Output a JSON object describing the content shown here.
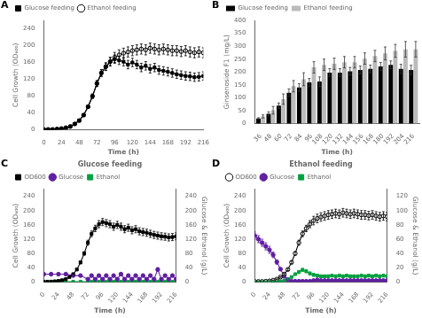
{
  "chart_data": [
    {
      "type": "line",
      "annotations": [
        "A"
      ],
      "xlabel": "Time (h)",
      "ylabel": "Cell Growth (OD₆₀₀)",
      "xlim": [
        0,
        216
      ],
      "ylim": [
        0,
        260
      ],
      "xticks": [
        0,
        24,
        48,
        72,
        96,
        120,
        144,
        168,
        192,
        216
      ],
      "yticks": [
        0,
        40,
        80,
        120,
        160,
        200,
        240
      ],
      "grid": false,
      "legend": "upper left",
      "series": [
        {
          "name": "Glucose feeding",
          "color": "#000000",
          "marker": "square",
          "line_style": "solid",
          "x": [
            0,
            6,
            12,
            18,
            24,
            30,
            36,
            42,
            48,
            54,
            60,
            66,
            72,
            78,
            84,
            90,
            96,
            102,
            108,
            114,
            120,
            126,
            132,
            138,
            144,
            150,
            156,
            162,
            168,
            174,
            180,
            186,
            192,
            198,
            204,
            210,
            216
          ],
          "values": [
            1,
            1,
            1,
            2,
            3,
            5,
            8,
            14,
            22,
            35,
            55,
            80,
            110,
            135,
            150,
            162,
            168,
            165,
            162,
            155,
            160,
            155,
            148,
            152,
            145,
            148,
            142,
            140,
            138,
            135,
            132,
            130,
            128,
            127,
            125,
            126,
            128
          ],
          "errors": [
            0.5,
            0.5,
            0.5,
            0.5,
            0.5,
            0.5,
            0.5,
            1,
            2,
            3,
            4,
            5,
            7,
            8,
            9,
            10,
            10,
            10,
            10,
            10,
            10,
            10,
            10,
            10,
            10,
            10,
            10,
            10,
            10,
            10,
            10,
            10,
            10,
            10,
            10,
            10,
            10
          ]
        },
        {
          "name": "Ethanol feeding",
          "color": "#000000",
          "marker": "open_circle",
          "line_style": "solid",
          "x": [
            0,
            6,
            12,
            18,
            24,
            30,
            36,
            42,
            48,
            54,
            60,
            66,
            72,
            78,
            84,
            90,
            96,
            102,
            108,
            114,
            120,
            126,
            132,
            138,
            144,
            150,
            156,
            162,
            168,
            174,
            180,
            186,
            192,
            198,
            204,
            210,
            216
          ],
          "values": [
            1,
            1,
            1,
            2,
            3,
            5,
            8,
            14,
            22,
            35,
            55,
            80,
            110,
            135,
            150,
            162,
            172,
            178,
            182,
            185,
            188,
            190,
            192,
            190,
            194,
            192,
            190,
            192,
            190,
            188,
            188,
            186,
            188,
            185,
            183,
            185,
            183
          ],
          "errors": [
            0.5,
            0.5,
            0.5,
            0.5,
            0.5,
            0.5,
            0.5,
            1,
            2,
            3,
            4,
            5,
            7,
            8,
            9,
            10,
            12,
            12,
            12,
            12,
            12,
            12,
            12,
            12,
            12,
            12,
            12,
            12,
            12,
            12,
            12,
            12,
            12,
            12,
            12,
            12,
            12
          ]
        }
      ]
    },
    {
      "type": "bar",
      "annotations": [
        "B"
      ],
      "xlabel": "Time (h)",
      "ylabel": "Ginsenoside F1 (mg/L)",
      "x": [
        36,
        48,
        60,
        72,
        84,
        96,
        108,
        120,
        132,
        144,
        156,
        168,
        180,
        192,
        204,
        216
      ],
      "xlim": [
        29,
        223
      ],
      "ylim": [
        0,
        400
      ],
      "xticks": [
        36,
        48,
        60,
        72,
        84,
        96,
        108,
        120,
        132,
        144,
        156,
        168,
        180,
        192,
        204,
        216
      ],
      "yticks": [
        0,
        50,
        100,
        150,
        200,
        250,
        300,
        350,
        400
      ],
      "grid": false,
      "legend": "upper left",
      "series": [
        {
          "name": "Glucose feeding",
          "color": "#000000",
          "values": [
            20,
            38,
            70,
            120,
            140,
            160,
            163,
            198,
            198,
            203,
            208,
            212,
            222,
            228,
            212,
            208
          ],
          "errors": [
            3,
            8,
            10,
            15,
            15,
            15,
            18,
            15,
            15,
            15,
            15,
            15,
            15,
            15,
            18,
            18
          ]
        },
        {
          "name": "Ethanol feeding",
          "color": "#BBBBBB",
          "values": [
            28,
            52,
            95,
            145,
            172,
            218,
            228,
            232,
            238,
            238,
            252,
            262,
            272,
            282,
            288,
            288
          ],
          "errors": [
            6,
            15,
            20,
            22,
            25,
            22,
            22,
            22,
            22,
            22,
            22,
            22,
            25,
            25,
            30,
            30
          ]
        }
      ]
    },
    {
      "type": "line",
      "title": "Glucose feeding",
      "annotations": [
        "C"
      ],
      "xlabel": "Time (h)",
      "ylabel": "Cell Growth (OD₆₀₀)",
      "y2label": "Glucose & Ethanol (g/L)",
      "xlim": [
        0,
        216
      ],
      "ylim": [
        0,
        260
      ],
      "y2lim": [
        0,
        260
      ],
      "xticks": [
        0,
        24,
        48,
        72,
        96,
        120,
        144,
        168,
        192,
        216
      ],
      "yticks": [
        0,
        40,
        80,
        120,
        160,
        200,
        240
      ],
      "y2ticks": [
        0,
        40,
        80,
        120,
        160,
        200,
        240
      ],
      "grid": false,
      "legend": "upper left",
      "series": [
        {
          "name": "OD600",
          "color": "#000000",
          "marker": "square",
          "line_style": "solid",
          "x": [
            0,
            6,
            12,
            18,
            24,
            30,
            36,
            42,
            48,
            54,
            60,
            66,
            72,
            78,
            84,
            90,
            96,
            102,
            108,
            114,
            120,
            126,
            132,
            138,
            144,
            150,
            156,
            162,
            168,
            174,
            180,
            186,
            192,
            198,
            204,
            210,
            216
          ],
          "values": [
            1,
            1,
            1,
            2,
            3,
            5,
            8,
            14,
            22,
            35,
            55,
            80,
            110,
            135,
            150,
            162,
            168,
            165,
            162,
            155,
            160,
            155,
            148,
            152,
            145,
            148,
            142,
            140,
            138,
            135,
            132,
            130,
            128,
            127,
            125,
            126,
            128
          ],
          "errors": [
            0.5,
            0.5,
            0.5,
            0.5,
            0.5,
            0.5,
            0.5,
            1,
            2,
            3,
            4,
            5,
            7,
            8,
            9,
            10,
            10,
            10,
            10,
            10,
            10,
            10,
            10,
            10,
            10,
            10,
            10,
            10,
            10,
            10,
            10,
            10,
            10,
            10,
            10,
            10,
            10
          ]
        },
        {
          "name": "Glucose",
          "color": "#6020A0",
          "marker": "circle",
          "line_style": "solid",
          "axis": "y2",
          "x": [
            0,
            12,
            24,
            36,
            48,
            60,
            72,
            78,
            84,
            90,
            96,
            102,
            108,
            114,
            120,
            126,
            132,
            138,
            144,
            150,
            156,
            162,
            168,
            174,
            180,
            186,
            192,
            198,
            204,
            210,
            216
          ],
          "values": [
            22,
            22,
            22,
            22,
            18,
            18,
            8,
            18,
            8,
            18,
            8,
            18,
            8,
            18,
            8,
            22,
            8,
            18,
            8,
            18,
            8,
            18,
            8,
            18,
            8,
            35,
            8,
            18,
            8,
            18,
            8
          ],
          "errors": [
            2,
            2,
            2,
            2,
            2,
            2,
            2,
            3,
            2,
            3,
            2,
            3,
            2,
            3,
            2,
            3,
            2,
            3,
            2,
            3,
            2,
            3,
            2,
            3,
            2,
            5,
            2,
            3,
            2,
            3,
            2
          ]
        },
        {
          "name": "Ethanol",
          "color": "#00A040",
          "marker": "square",
          "line_style": "solid",
          "axis": "y2",
          "x": [
            0,
            12,
            24,
            36,
            48,
            60,
            72,
            78,
            84,
            90,
            96,
            102,
            108,
            114,
            120,
            126,
            132,
            138,
            144,
            150,
            156,
            162,
            168,
            174,
            180,
            186,
            192,
            198,
            204,
            210,
            216
          ],
          "values": [
            1,
            1,
            1,
            1,
            1,
            1,
            1,
            1,
            1,
            1,
            1,
            1,
            1,
            1,
            1,
            1,
            1,
            1,
            1,
            1,
            1,
            1,
            1,
            1,
            1,
            1,
            1,
            1,
            1,
            1,
            1
          ]
        }
      ]
    },
    {
      "type": "line",
      "title": "Ethanol feeding",
      "annotations": [
        "D"
      ],
      "xlabel": "Time (h)",
      "ylabel": "Cell Growth (OD₆₀₀)",
      "y2label": "Glucose & Ethanol (g/L)",
      "xlim": [
        0,
        216
      ],
      "ylim": [
        0,
        260
      ],
      "y2lim": [
        0,
        130
      ],
      "xticks": [
        0,
        24,
        48,
        72,
        96,
        120,
        144,
        168,
        192,
        216
      ],
      "yticks": [
        0,
        40,
        80,
        120,
        160,
        200,
        240
      ],
      "y2ticks": [
        0,
        20,
        40,
        60,
        80,
        100,
        120
      ],
      "grid": false,
      "legend": "upper left",
      "series": [
        {
          "name": "OD600",
          "color": "#000000",
          "marker": "open_circle",
          "line_style": "solid",
          "x": [
            0,
            6,
            12,
            18,
            24,
            30,
            36,
            42,
            48,
            54,
            60,
            66,
            72,
            78,
            84,
            90,
            96,
            102,
            108,
            114,
            120,
            126,
            132,
            138,
            144,
            150,
            156,
            162,
            168,
            174,
            180,
            186,
            192,
            198,
            204,
            210,
            216
          ],
          "values": [
            1,
            1,
            1,
            2,
            3,
            5,
            8,
            14,
            22,
            35,
            55,
            80,
            110,
            135,
            150,
            162,
            172,
            178,
            182,
            185,
            188,
            190,
            192,
            190,
            194,
            192,
            190,
            192,
            190,
            188,
            188,
            186,
            188,
            185,
            183,
            185,
            183
          ],
          "errors": [
            0.5,
            0.5,
            0.5,
            0.5,
            0.5,
            0.5,
            0.5,
            1,
            2,
            3,
            4,
            5,
            7,
            8,
            9,
            10,
            12,
            12,
            12,
            12,
            12,
            12,
            12,
            12,
            12,
            12,
            12,
            12,
            12,
            12,
            12,
            12,
            12,
            12,
            12,
            12,
            12
          ]
        },
        {
          "name": "Glucose",
          "color": "#6020A0",
          "marker": "circle",
          "line_style": "solid",
          "axis": "y2",
          "x": [
            0,
            6,
            12,
            18,
            24,
            30,
            36,
            42,
            48,
            54,
            60,
            66,
            72,
            78,
            84,
            90,
            96,
            102,
            108,
            114,
            120,
            126,
            132,
            138,
            144,
            150,
            156,
            162,
            168,
            174,
            180,
            186,
            192,
            198,
            204,
            210,
            216
          ],
          "values": [
            65,
            60,
            55,
            50,
            45,
            38,
            28,
            18,
            8,
            3,
            1,
            1,
            1,
            1,
            1,
            1,
            2,
            3,
            2,
            2,
            2,
            2,
            2,
            2,
            2,
            2,
            2,
            2,
            2,
            2,
            2,
            2,
            2,
            2,
            2,
            2,
            2
          ],
          "errors": [
            5,
            5,
            5,
            5,
            5,
            4,
            3,
            2,
            1,
            0.5,
            0.5,
            0.5,
            0.5,
            0.5,
            0.5,
            0.5,
            0.5,
            0.5,
            0.5,
            0.5,
            0.5,
            0.5,
            0.5,
            0.5,
            0.5,
            0.5,
            0.5,
            0.5,
            0.5,
            0.5,
            0.5,
            0.5,
            0.5,
            0.5,
            0.5,
            0.5,
            0.5
          ]
        },
        {
          "name": "Ethanol",
          "color": "#00A040",
          "marker": "square",
          "line_style": "solid",
          "axis": "y2",
          "x": [
            0,
            6,
            12,
            18,
            24,
            30,
            36,
            42,
            48,
            54,
            60,
            66,
            72,
            78,
            84,
            90,
            96,
            102,
            108,
            114,
            120,
            126,
            132,
            138,
            144,
            150,
            156,
            162,
            168,
            174,
            180,
            186,
            192,
            198,
            204,
            210,
            216
          ],
          "values": [
            1,
            1,
            1,
            1,
            1,
            1,
            1,
            1,
            2,
            4,
            7,
            11,
            14,
            17,
            15,
            12,
            10,
            9,
            8,
            8,
            8,
            9,
            8,
            9,
            8,
            9,
            8,
            8,
            8,
            9,
            8,
            9,
            8,
            9,
            8,
            9,
            8
          ],
          "errors": [
            0.5,
            0.5,
            0.5,
            0.5,
            0.5,
            0.5,
            0.5,
            0.5,
            0.5,
            1,
            1,
            1,
            2,
            2,
            2,
            2,
            2,
            2,
            2,
            2,
            2,
            2,
            2,
            2,
            2,
            2,
            2,
            2,
            2,
            2,
            2,
            2,
            2,
            2,
            2,
            2,
            2
          ]
        }
      ]
    }
  ]
}
